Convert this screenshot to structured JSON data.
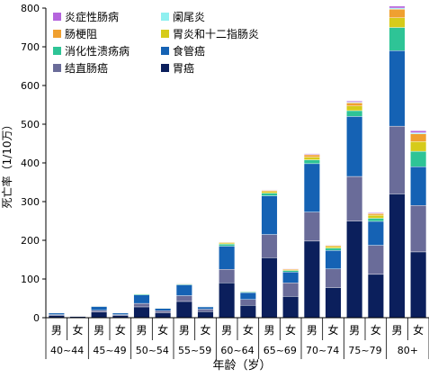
{
  "chart_data": {
    "type": "bar",
    "stacked": true,
    "xlabel": "年龄（岁）",
    "ylabel": "死亡率（1/10万）",
    "ylim": [
      0,
      800
    ],
    "yticks": [
      0,
      100,
      200,
      300,
      400,
      500,
      600,
      700,
      800
    ],
    "grid": false,
    "legend_position": "top-left",
    "age_groups": [
      "40~44",
      "45~49",
      "50~54",
      "55~59",
      "60~64",
      "65~69",
      "70~74",
      "75~79",
      "80+"
    ],
    "sexes": [
      "男",
      "女"
    ],
    "categories": [
      "40~44 男",
      "40~44 女",
      "45~49 男",
      "45~49 女",
      "50~54 男",
      "50~54 女",
      "55~59 男",
      "55~59 女",
      "60~64 男",
      "60~64 女",
      "65~69 男",
      "65~69 女",
      "70~74 男",
      "70~74 女",
      "75~79 男",
      "75~79 女",
      "80+ 男",
      "80+ 女"
    ],
    "series": [
      {
        "name": "胃癌",
        "color": "#0b1f5c",
        "values": [
          6,
          3,
          15,
          6,
          28,
          13,
          42,
          16,
          90,
          32,
          155,
          55,
          198,
          78,
          250,
          112,
          320,
          170
        ]
      },
      {
        "name": "结直肠癌",
        "color": "#6a6c99",
        "values": [
          2,
          1,
          4,
          2,
          9,
          5,
          15,
          6,
          35,
          15,
          60,
          35,
          75,
          48,
          115,
          75,
          175,
          120
        ]
      },
      {
        "name": "食管癌",
        "color": "#1562b4",
        "values": [
          4,
          1,
          10,
          4,
          22,
          6,
          28,
          6,
          60,
          18,
          100,
          28,
          125,
          48,
          155,
          62,
          195,
          100
        ]
      },
      {
        "name": "消化性溃疡病",
        "color": "#2ec496",
        "values": [
          1,
          0.5,
          1,
          1,
          2,
          1,
          2,
          1,
          5,
          2,
          7,
          4,
          10,
          6,
          15,
          8,
          60,
          40
        ]
      },
      {
        "name": "胃炎和十二指肠炎",
        "color": "#d6cb1a",
        "values": [
          0.5,
          0.5,
          1,
          0.5,
          1,
          0.5,
          1,
          0.5,
          3,
          1,
          4,
          2,
          7,
          4,
          12,
          8,
          25,
          25
        ]
      },
      {
        "name": "肠梗阻",
        "color": "#f0a030",
        "values": [
          0.5,
          0.5,
          0.5,
          0.5,
          1,
          0.5,
          1,
          0.5,
          2,
          1,
          3,
          2,
          6,
          3,
          8,
          4,
          22,
          20
        ]
      },
      {
        "name": "阑尾炎",
        "color": "#8ff0f0",
        "values": [
          0.2,
          0.2,
          0.2,
          0.2,
          0.2,
          0.2,
          0.3,
          0.2,
          0.5,
          0.3,
          1,
          0.5,
          1,
          1,
          2,
          1,
          3,
          3
        ]
      },
      {
        "name": "炎症性肠病",
        "color": "#b565dd",
        "values": [
          0.2,
          0.2,
          0.2,
          0.2,
          0.3,
          0.2,
          0.3,
          0.2,
          0.5,
          0.3,
          1,
          0.5,
          2,
          1,
          3,
          2,
          5,
          5
        ]
      }
    ],
    "legend": [
      {
        "name": "炎症性肠病",
        "color": "#b565dd"
      },
      {
        "name": "阑尾炎",
        "color": "#8ff0f0"
      },
      {
        "name": "肠梗阻",
        "color": "#f0a030"
      },
      {
        "name": "胃炎和十二指肠炎",
        "color": "#d6cb1a"
      },
      {
        "name": "消化性溃疡病",
        "color": "#2ec496"
      },
      {
        "name": "食管癌",
        "color": "#1562b4"
      },
      {
        "name": "结直肠癌",
        "color": "#6a6c99"
      },
      {
        "name": "胃癌",
        "color": "#0b1f5c"
      }
    ]
  }
}
